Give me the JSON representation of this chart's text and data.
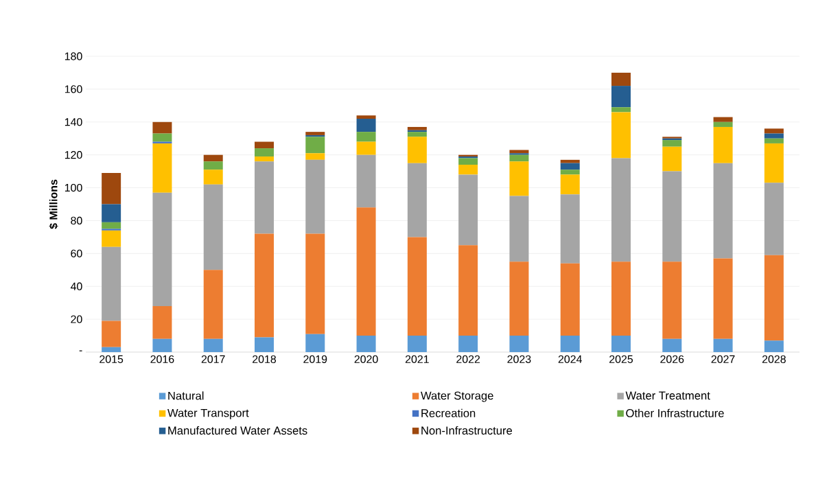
{
  "chart_data": {
    "type": "bar",
    "stacked": true,
    "ylabel": "$ Millions",
    "categories": [
      "2015",
      "2016",
      "2017",
      "2018",
      "2019",
      "2020",
      "2021",
      "2022",
      "2023",
      "2024",
      "2025",
      "2026",
      "2027",
      "2028"
    ],
    "series": [
      {
        "name": "Natural",
        "color": "#5b9bd5",
        "values": [
          3,
          8,
          8,
          9,
          11,
          10,
          10,
          10,
          10,
          10,
          10,
          8,
          8,
          7
        ]
      },
      {
        "name": "Water Storage",
        "color": "#ed7d31",
        "values": [
          16,
          20,
          42,
          63,
          61,
          78,
          60,
          55,
          45,
          44,
          45,
          47,
          49,
          52
        ]
      },
      {
        "name": "Water Treatment",
        "color": "#a5a5a5",
        "values": [
          45,
          69,
          52,
          44,
          45,
          32,
          45,
          43,
          40,
          42,
          63,
          55,
          58,
          44
        ]
      },
      {
        "name": "Water Transport",
        "color": "#ffc000",
        "values": [
          10,
          30,
          9,
          3,
          4,
          8,
          16,
          6,
          21,
          12,
          28,
          15,
          22,
          24
        ]
      },
      {
        "name": "Recreation",
        "color": "#4472c4",
        "values": [
          1,
          1,
          0,
          0,
          0,
          0,
          0,
          0,
          0,
          0,
          0,
          0,
          0,
          0
        ]
      },
      {
        "name": "Other Infrastructure",
        "color": "#70ad47",
        "values": [
          4,
          5,
          5,
          5,
          10,
          6,
          3,
          4,
          4,
          3,
          3,
          4,
          3,
          3
        ]
      },
      {
        "name": "Manufactured Water Assets",
        "color": "#255e91",
        "values": [
          11,
          0,
          0,
          0,
          1,
          8,
          1,
          1,
          1,
          4,
          13,
          1,
          0,
          3
        ]
      },
      {
        "name": "Non-Infrastructure",
        "color": "#9e480e",
        "values": [
          19,
          7,
          4,
          4,
          2,
          2,
          2,
          1,
          2,
          2,
          8,
          1,
          3,
          3
        ]
      }
    ],
    "ylim": [
      0,
      180
    ],
    "yticks": [
      {
        "value": 0,
        "label": "-"
      },
      20,
      40,
      60,
      80,
      100,
      120,
      140,
      160,
      180
    ],
    "grid": "y",
    "legend": "bottom"
  }
}
